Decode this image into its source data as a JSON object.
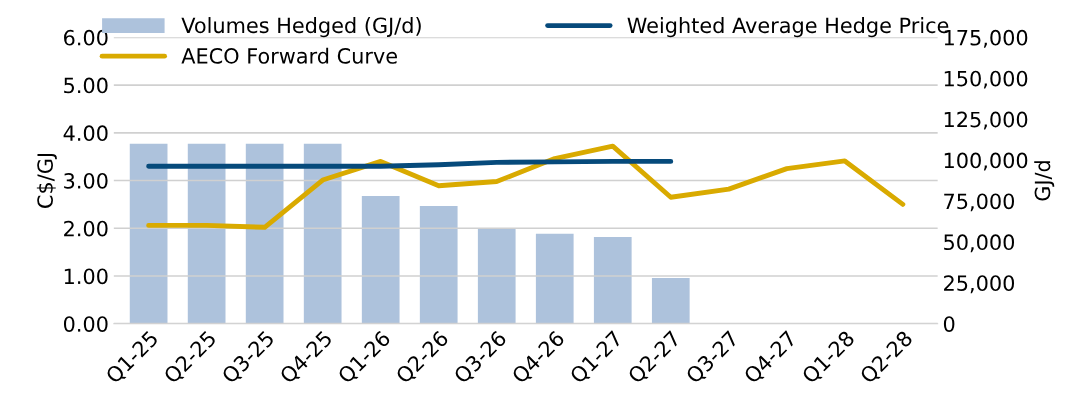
{
  "chart_data": {
    "type": "bar",
    "ylabel": "C$/GJ",
    "y2label": "GJ/d",
    "categories": [
      "Q1-25",
      "Q2-25",
      "Q3-25",
      "Q4-25",
      "Q1-26",
      "Q2-26",
      "Q3-26",
      "Q4-26",
      "Q1-27",
      "Q2-27",
      "Q3-27",
      "Q4-27",
      "Q1-28",
      "Q2-28"
    ],
    "series": [
      {
        "name": "Volumes Hedged (GJ/d)",
        "axis": "y2",
        "color": "#adc2dc",
        "values": [
          110000,
          110000,
          110000,
          110000,
          78000,
          72000,
          58000,
          55000,
          53000,
          28000,
          null,
          null,
          null,
          null
        ]
      },
      {
        "name": "AECO Forward Curve",
        "type": "line",
        "color": "#d9aa00",
        "values": [
          2.06,
          2.06,
          2.02,
          3.01,
          3.4,
          2.89,
          2.98,
          3.46,
          3.72,
          2.65,
          2.82,
          3.25,
          3.41,
          2.5
        ]
      },
      {
        "name": "Weighted Average Hedge Price",
        "type": "line",
        "color": "#064a7b",
        "values": [
          3.3,
          3.3,
          3.3,
          3.3,
          3.3,
          3.33,
          3.38,
          3.39,
          3.4,
          3.4,
          null,
          null,
          null,
          null
        ]
      }
    ],
    "ylim": [
      0,
      6
    ],
    "yticks": [
      {
        "value": 0,
        "label": "0.00"
      },
      {
        "value": 1,
        "label": "1.00"
      },
      {
        "value": 2,
        "label": "2.00"
      },
      {
        "value": 3,
        "label": "3.00"
      },
      {
        "value": 4,
        "label": "4.00"
      },
      {
        "value": 5,
        "label": "5.00"
      },
      {
        "value": 6,
        "label": "6.00"
      }
    ],
    "y2lim": [
      0,
      175000
    ],
    "y2ticks": [
      {
        "value": 0,
        "label": "0"
      },
      {
        "value": 25000,
        "label": "25,000"
      },
      {
        "value": 50000,
        "label": "50,000"
      },
      {
        "value": 75000,
        "label": "75,000"
      },
      {
        "value": 100000,
        "label": "100,000"
      },
      {
        "value": 125000,
        "label": "125,000"
      },
      {
        "value": 150000,
        "label": "150,000"
      },
      {
        "value": 175000,
        "label": "175,000"
      }
    ],
    "grid": "y",
    "legend": "top"
  }
}
